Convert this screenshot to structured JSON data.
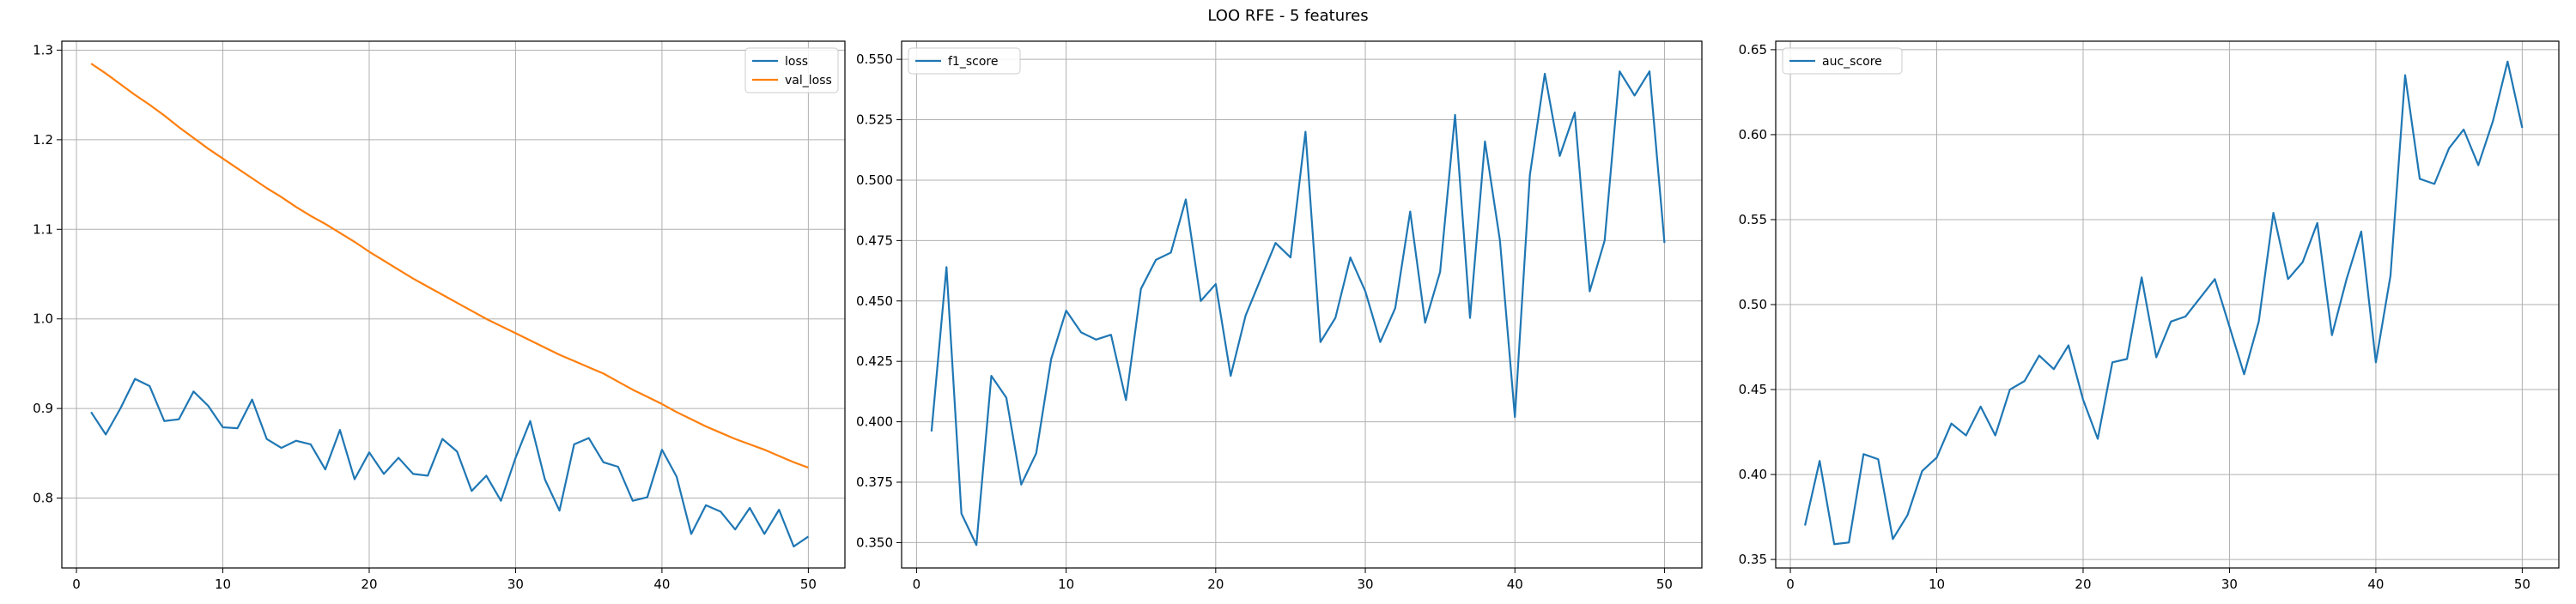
{
  "figure": {
    "title": "LOO RFE - 5 features"
  },
  "chart_data": [
    {
      "type": "line",
      "title": "",
      "xlabel": "",
      "ylabel": "",
      "xlim": [
        -1,
        52.5
      ],
      "ylim": [
        0.722,
        1.31
      ],
      "xticks": [
        0,
        10,
        20,
        30,
        40,
        50
      ],
      "yticks": [
        0.8,
        0.9,
        1.0,
        1.1,
        1.2,
        1.3
      ],
      "ytick_decimals": 1,
      "grid": true,
      "legend_position": "top-right",
      "x": [
        1,
        2,
        3,
        4,
        5,
        6,
        7,
        8,
        9,
        10,
        11,
        12,
        13,
        14,
        15,
        16,
        17,
        18,
        19,
        20,
        21,
        22,
        23,
        24,
        25,
        26,
        27,
        28,
        29,
        30,
        31,
        32,
        33,
        34,
        35,
        36,
        37,
        38,
        39,
        40,
        41,
        42,
        43,
        44,
        45,
        46,
        47,
        48,
        49,
        50
      ],
      "series": [
        {
          "name": "loss",
          "color": "#1f77b4",
          "values": [
            0.896,
            0.871,
            0.9,
            0.933,
            0.925,
            0.886,
            0.888,
            0.919,
            0.903,
            0.879,
            0.878,
            0.91,
            0.866,
            0.856,
            0.864,
            0.86,
            0.832,
            0.876,
            0.821,
            0.851,
            0.827,
            0.845,
            0.827,
            0.825,
            0.866,
            0.852,
            0.808,
            0.825,
            0.797,
            0.845,
            0.886,
            0.821,
            0.786,
            0.86,
            0.867,
            0.84,
            0.835,
            0.797,
            0.801,
            0.854,
            0.824,
            0.76,
            0.792,
            0.785,
            0.765,
            0.789,
            0.76,
            0.787,
            0.746,
            0.757
          ]
        },
        {
          "name": "val_loss",
          "color": "#ff7f0e",
          "values": [
            1.285,
            1.274,
            1.262,
            1.25,
            1.239,
            1.227,
            1.214,
            1.202,
            1.19,
            1.179,
            1.168,
            1.157,
            1.146,
            1.136,
            1.125,
            1.115,
            1.106,
            1.096,
            1.086,
            1.075,
            1.065,
            1.055,
            1.045,
            1.036,
            1.027,
            1.018,
            1.009,
            1.0,
            0.992,
            0.984,
            0.976,
            0.968,
            0.96,
            0.953,
            0.946,
            0.939,
            0.93,
            0.921,
            0.913,
            0.905,
            0.896,
            0.888,
            0.88,
            0.873,
            0.866,
            0.86,
            0.854,
            0.847,
            0.84,
            0.834
          ]
        }
      ]
    },
    {
      "type": "line",
      "title": "",
      "xlabel": "",
      "ylabel": "",
      "xlim": [
        -1,
        52.5
      ],
      "ylim": [
        0.3395,
        0.5575
      ],
      "xticks": [
        0,
        10,
        20,
        30,
        40,
        50
      ],
      "yticks": [
        0.35,
        0.375,
        0.4,
        0.425,
        0.45,
        0.475,
        0.5,
        0.525,
        0.55
      ],
      "ytick_decimals": 3,
      "grid": true,
      "legend_position": "top-left",
      "x": [
        1,
        2,
        3,
        4,
        5,
        6,
        7,
        8,
        9,
        10,
        11,
        12,
        13,
        14,
        15,
        16,
        17,
        18,
        19,
        20,
        21,
        22,
        23,
        24,
        25,
        26,
        27,
        28,
        29,
        30,
        31,
        32,
        33,
        34,
        35,
        36,
        37,
        38,
        39,
        40,
        41,
        42,
        43,
        44,
        45,
        46,
        47,
        48,
        49,
        50
      ],
      "series": [
        {
          "name": "f1_score",
          "color": "#1f77b4",
          "values": [
            0.396,
            0.464,
            0.362,
            0.349,
            0.419,
            0.41,
            0.374,
            0.387,
            0.426,
            0.446,
            0.437,
            0.434,
            0.436,
            0.409,
            0.455,
            0.467,
            0.47,
            0.492,
            0.45,
            0.457,
            0.419,
            0.444,
            0.459,
            0.474,
            0.468,
            0.52,
            0.433,
            0.443,
            0.468,
            0.454,
            0.433,
            0.447,
            0.487,
            0.441,
            0.462,
            0.527,
            0.443,
            0.516,
            0.475,
            0.402,
            0.502,
            0.544,
            0.51,
            0.528,
            0.454,
            0.475,
            0.545,
            0.535,
            0.545,
            0.474
          ]
        }
      ]
    },
    {
      "type": "line",
      "title": "",
      "xlabel": "",
      "ylabel": "",
      "xlim": [
        -1,
        52.5
      ],
      "ylim": [
        0.345,
        0.655
      ],
      "xticks": [
        0,
        10,
        20,
        30,
        40,
        50
      ],
      "yticks": [
        0.35,
        0.4,
        0.45,
        0.5,
        0.55,
        0.6,
        0.65
      ],
      "ytick_decimals": 2,
      "grid": true,
      "legend_position": "top-left",
      "x": [
        1,
        2,
        3,
        4,
        5,
        6,
        7,
        8,
        9,
        10,
        11,
        12,
        13,
        14,
        15,
        16,
        17,
        18,
        19,
        20,
        21,
        22,
        23,
        24,
        25,
        26,
        27,
        28,
        29,
        30,
        31,
        32,
        33,
        34,
        35,
        36,
        37,
        38,
        39,
        40,
        41,
        42,
        43,
        44,
        45,
        46,
        47,
        48,
        49,
        50
      ],
      "series": [
        {
          "name": "auc_score",
          "color": "#1f77b4",
          "values": [
            0.37,
            0.408,
            0.359,
            0.36,
            0.412,
            0.409,
            0.362,
            0.376,
            0.402,
            0.41,
            0.43,
            0.423,
            0.44,
            0.423,
            0.45,
            0.455,
            0.47,
            0.462,
            0.476,
            0.444,
            0.421,
            0.466,
            0.468,
            0.516,
            0.469,
            0.49,
            0.493,
            0.504,
            0.515,
            0.487,
            0.459,
            0.49,
            0.554,
            0.515,
            0.525,
            0.548,
            0.482,
            0.515,
            0.543,
            0.466,
            0.517,
            0.635,
            0.574,
            0.571,
            0.592,
            0.603,
            0.582,
            0.608,
            0.643,
            0.604
          ]
        }
      ]
    }
  ]
}
